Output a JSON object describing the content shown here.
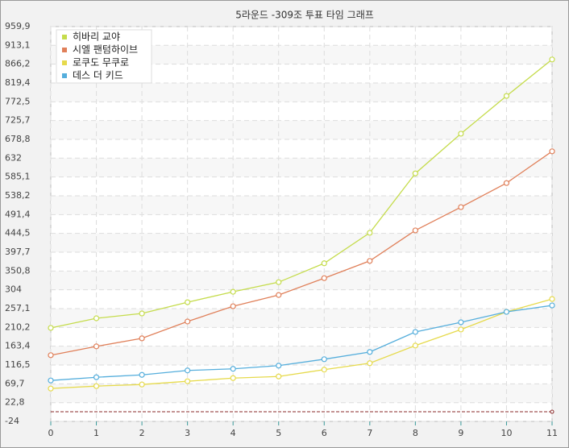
{
  "chart_data": {
    "type": "line",
    "title": "5라운드 -309조 투표 타임 그래프",
    "x": [
      0,
      1,
      2,
      3,
      4,
      5,
      6,
      7,
      8,
      9,
      10,
      11
    ],
    "xlim": [
      0,
      11
    ],
    "xticks": [
      0,
      1,
      2,
      3,
      4,
      5,
      6,
      7,
      8,
      9,
      10,
      11
    ],
    "ylim": [
      -24,
      959.9
    ],
    "yticks": [
      -24,
      {
        "value": 22.8,
        "label": "22,8"
      },
      {
        "value": 69.7,
        "label": "69,7"
      },
      {
        "value": 116.5,
        "label": "116,5"
      },
      {
        "value": 163.4,
        "label": "163,4"
      },
      {
        "value": 210.2,
        "label": "210,2"
      },
      {
        "value": 257.1,
        "label": "257,1"
      },
      304,
      {
        "value": 350.8,
        "label": "350,8"
      },
      {
        "value": 397.7,
        "label": "397,7"
      },
      {
        "value": 444.5,
        "label": "444,5"
      },
      {
        "value": 491.4,
        "label": "491,4"
      },
      {
        "value": 538.2,
        "label": "538,2"
      },
      {
        "value": 585.1,
        "label": "585,1"
      },
      632,
      {
        "value": 678.8,
        "label": "678,8"
      },
      {
        "value": 725.7,
        "label": "725,7"
      },
      {
        "value": 772.5,
        "label": "772,5"
      },
      {
        "value": 819.4,
        "label": "819,4"
      },
      {
        "value": 866.2,
        "label": "866,2"
      },
      {
        "value": 913.1,
        "label": "913,1"
      },
      {
        "value": 959.9,
        "label": "959,9"
      }
    ],
    "grid": true,
    "legend": "top-left",
    "baseline": 0,
    "series": [
      {
        "name": "히바리 교야",
        "color": "#c5dc4c",
        "values": [
          209,
          233,
          245,
          273,
          299,
          323,
          370,
          446,
          594,
          693,
          787,
          878
        ]
      },
      {
        "name": "시엘 팬텀하이브",
        "color": "#e0805a",
        "values": [
          141,
          163,
          183,
          225,
          263,
          291,
          333,
          376,
          452,
          510,
          570,
          649
        ]
      },
      {
        "name": "로쿠도 무쿠로",
        "color": "#e6da4c",
        "values": [
          58,
          64,
          68,
          76,
          84,
          88,
          105,
          121,
          165,
          205,
          249,
          281
        ]
      },
      {
        "name": "데스 더 키드",
        "color": "#55aedc",
        "values": [
          78,
          86,
          92,
          103,
          107,
          115,
          131,
          149,
          199,
          223,
          249,
          265
        ]
      }
    ]
  }
}
